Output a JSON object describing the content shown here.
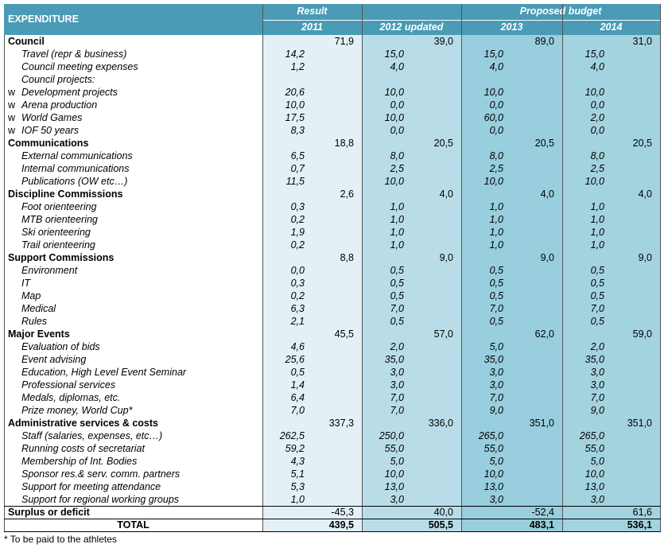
{
  "header": {
    "expenditure": "EXPENDITURE",
    "groups": [
      "Result",
      "Proposed budget"
    ],
    "years": [
      "2011",
      "2012 updated",
      "2013",
      "2014"
    ]
  },
  "rows": [
    {
      "kind": "group",
      "label": "Council",
      "values": [
        "71,9",
        "39,0",
        "89,0",
        "31,0"
      ]
    },
    {
      "kind": "item",
      "label": "Travel (repr & business)",
      "values": [
        "14,2",
        "15,0",
        "15,0",
        "15,0"
      ]
    },
    {
      "kind": "item",
      "label": "Council meeting expenses",
      "values": [
        "1,2",
        "4,0",
        "4,0",
        "4,0"
      ]
    },
    {
      "kind": "item",
      "label": "Council projects:",
      "values": []
    },
    {
      "kind": "sub",
      "bullet": "w",
      "label": "Development projects",
      "values": [
        "20,6",
        "10,0",
        "10,0",
        "10,0"
      ]
    },
    {
      "kind": "sub",
      "bullet": "w",
      "label": "Arena production",
      "values": [
        "10,0",
        "0,0",
        "0,0",
        "0,0"
      ]
    },
    {
      "kind": "sub",
      "bullet": "w",
      "label": "World Games",
      "values": [
        "17,5",
        "10,0",
        "60,0",
        "2,0"
      ]
    },
    {
      "kind": "sub",
      "bullet": "w",
      "label": "IOF 50 years",
      "values": [
        "8,3",
        "0,0",
        "0,0",
        "0,0"
      ]
    },
    {
      "kind": "group",
      "label": "Communications",
      "values": [
        "18,8",
        "20,5",
        "20,5",
        "20,5"
      ]
    },
    {
      "kind": "item",
      "label": "External communications",
      "values": [
        "6,5",
        "8,0",
        "8,0",
        "8,0"
      ]
    },
    {
      "kind": "item",
      "label": "Internal communications",
      "values": [
        "0,7",
        "2,5",
        "2,5",
        "2,5"
      ]
    },
    {
      "kind": "item",
      "label": "Publications (OW etc…)",
      "values": [
        "11,5",
        "10,0",
        "10,0",
        "10,0"
      ]
    },
    {
      "kind": "group",
      "label": "Discipline Commissions",
      "values": [
        "2,6",
        "4,0",
        "4,0",
        "4,0"
      ]
    },
    {
      "kind": "item",
      "label": "Foot orienteering",
      "values": [
        "0,3",
        "1,0",
        "1,0",
        "1,0"
      ]
    },
    {
      "kind": "item",
      "label": "MTB orienteering",
      "values": [
        "0,2",
        "1,0",
        "1,0",
        "1,0"
      ]
    },
    {
      "kind": "item",
      "label": "Ski orienteering",
      "values": [
        "1,9",
        "1,0",
        "1,0",
        "1,0"
      ]
    },
    {
      "kind": "item",
      "label": "Trail orienteering",
      "values": [
        "0,2",
        "1,0",
        "1,0",
        "1,0"
      ]
    },
    {
      "kind": "group",
      "label": "Support Commissions",
      "values": [
        "8,8",
        "9,0",
        "9,0",
        "9,0"
      ]
    },
    {
      "kind": "item",
      "label": "Environment",
      "values": [
        "0,0",
        "0,5",
        "0,5",
        "0,5"
      ]
    },
    {
      "kind": "item",
      "label": "IT",
      "values": [
        "0,3",
        "0,5",
        "0,5",
        "0,5"
      ]
    },
    {
      "kind": "item",
      "label": "Map",
      "values": [
        "0,2",
        "0,5",
        "0,5",
        "0,5"
      ]
    },
    {
      "kind": "item",
      "label": "Medical",
      "values": [
        "6,3",
        "7,0",
        "7,0",
        "7,0"
      ]
    },
    {
      "kind": "item",
      "label": "Rules",
      "values": [
        "2,1",
        "0,5",
        "0,5",
        "0,5"
      ]
    },
    {
      "kind": "group",
      "label": "Major Events",
      "values": [
        "45,5",
        "57,0",
        "62,0",
        "59,0"
      ]
    },
    {
      "kind": "item",
      "label": "Evaluation of bids",
      "values": [
        "4,6",
        "2,0",
        "5,0",
        "2,0"
      ]
    },
    {
      "kind": "item",
      "label": "Event advising",
      "values": [
        "25,6",
        "35,0",
        "35,0",
        "35,0"
      ]
    },
    {
      "kind": "item",
      "label": "Education, High Level Event Seminar",
      "values": [
        "0,5",
        "3,0",
        "3,0",
        "3,0"
      ]
    },
    {
      "kind": "item",
      "label": "Professional services",
      "values": [
        "1,4",
        "3,0",
        "3,0",
        "3,0"
      ]
    },
    {
      "kind": "item",
      "label": "Medals, diplomas, etc.",
      "values": [
        "6,4",
        "7,0",
        "7,0",
        "7,0"
      ]
    },
    {
      "kind": "item",
      "label": "Prize money, World Cup*",
      "values": [
        "7,0",
        "7,0",
        "9,0",
        "9,0"
      ]
    },
    {
      "kind": "group",
      "label": "Administrative services & costs",
      "values": [
        "337,3",
        "336,0",
        "351,0",
        "351,0"
      ]
    },
    {
      "kind": "item",
      "label": "Staff (salaries, expenses, etc…)",
      "values": [
        "262,5",
        "250,0",
        "265,0",
        "265,0"
      ]
    },
    {
      "kind": "item",
      "label": "Running costs of secretariat",
      "values": [
        "59,2",
        "55,0",
        "55,0",
        "55,0"
      ]
    },
    {
      "kind": "item",
      "label": "Membership of Int. Bodies",
      "values": [
        "4,3",
        "5,0",
        "5,0",
        "5,0"
      ]
    },
    {
      "kind": "item",
      "label": "Sponsor res.& serv. comm. partners",
      "values": [
        "5,1",
        "10,0",
        "10,0",
        "10,0"
      ]
    },
    {
      "kind": "item",
      "label": "Support for meeting attendance",
      "values": [
        "5,3",
        "13,0",
        "13,0",
        "13,0"
      ]
    },
    {
      "kind": "item",
      "label": "Support for regional working groups",
      "values": [
        "1,0",
        "3,0",
        "3,0",
        "3,0"
      ]
    },
    {
      "kind": "surplus",
      "label": "Surplus or deficit",
      "values": [
        "-45,3",
        "40,0",
        "-52,4",
        "61,6"
      ]
    },
    {
      "kind": "total",
      "label": "TOTAL",
      "values": [
        "439,5",
        "505,5",
        "483,1",
        "536,1"
      ]
    }
  ],
  "footnote": "* To be paid to the athletes"
}
